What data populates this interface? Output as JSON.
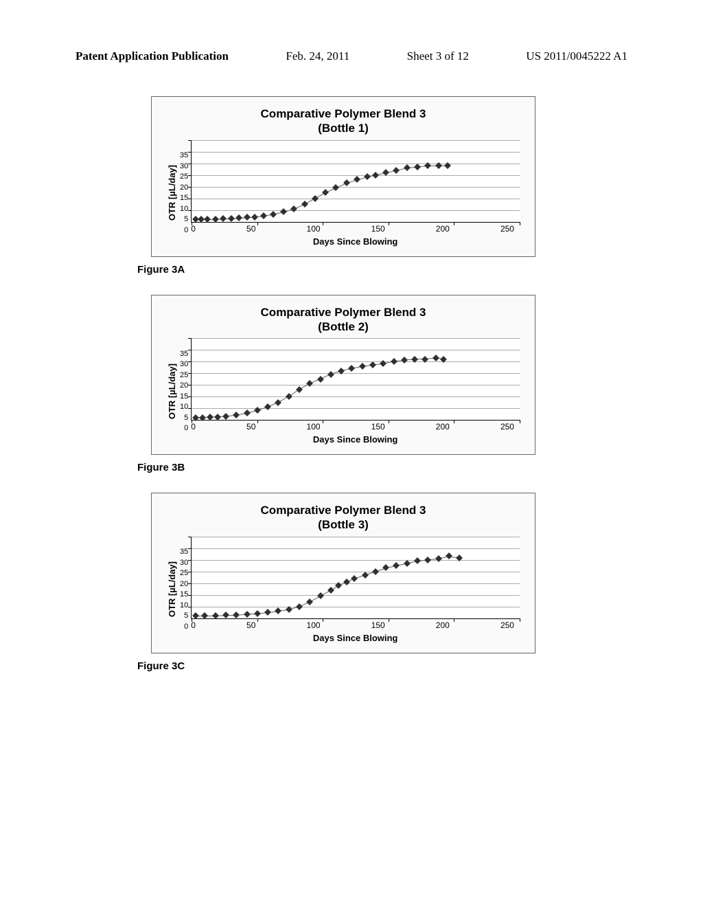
{
  "header": {
    "pub_label": "Patent Application Publication",
    "pub_date": "Feb. 24, 2011",
    "sheet": "Sheet 3 of 12",
    "pub_number": "US 2011/0045222 A1"
  },
  "charts": [
    {
      "title_line1": "Comparative Polymer Blend 3",
      "title_line2": "(Bottle 1)",
      "caption": "Figure 3A",
      "ylabel": "OTR [µL/day]",
      "xlabel": "Days Since Blowing",
      "xticks": [
        "0",
        "50",
        "100",
        "150",
        "200",
        "250"
      ],
      "yticks": [
        "35",
        "30",
        "25",
        "20",
        "15",
        "10",
        "5",
        "0"
      ],
      "xlim": [
        0,
        250
      ],
      "ylim": [
        0,
        35
      ],
      "ytick_step": 5,
      "type": "scatter_line",
      "line_color": "#606060",
      "marker_color": "#303030",
      "marker_size": 3.5,
      "grid_color": "#aaaaaa",
      "background_color": "#ffffff",
      "data": [
        {
          "x": 3,
          "y": 1
        },
        {
          "x": 7,
          "y": 1
        },
        {
          "x": 12,
          "y": 1
        },
        {
          "x": 18,
          "y": 1
        },
        {
          "x": 24,
          "y": 1.2
        },
        {
          "x": 30,
          "y": 1.3
        },
        {
          "x": 36,
          "y": 1.5
        },
        {
          "x": 42,
          "y": 1.8
        },
        {
          "x": 48,
          "y": 2
        },
        {
          "x": 55,
          "y": 2.5
        },
        {
          "x": 62,
          "y": 3.2
        },
        {
          "x": 70,
          "y": 4.2
        },
        {
          "x": 78,
          "y": 5.5
        },
        {
          "x": 86,
          "y": 7.5
        },
        {
          "x": 94,
          "y": 10
        },
        {
          "x": 102,
          "y": 12.5
        },
        {
          "x": 110,
          "y": 14.5
        },
        {
          "x": 118,
          "y": 16.5
        },
        {
          "x": 126,
          "y": 18
        },
        {
          "x": 134,
          "y": 19.2
        },
        {
          "x": 140,
          "y": 20
        },
        {
          "x": 148,
          "y": 21
        },
        {
          "x": 156,
          "y": 22
        },
        {
          "x": 164,
          "y": 23
        },
        {
          "x": 172,
          "y": 23.5
        },
        {
          "x": 180,
          "y": 24
        },
        {
          "x": 188,
          "y": 24
        },
        {
          "x": 195,
          "y": 24
        }
      ]
    },
    {
      "title_line1": "Comparative Polymer Blend 3",
      "title_line2": "(Bottle 2)",
      "caption": "Figure 3B",
      "ylabel": "OTR [µL/day]",
      "xlabel": "Days Since Blowing",
      "xticks": [
        "0",
        "50",
        "100",
        "150",
        "200",
        "250"
      ],
      "yticks": [
        "35",
        "30",
        "25",
        "20",
        "15",
        "10",
        "5",
        "0"
      ],
      "xlim": [
        0,
        250
      ],
      "ylim": [
        0,
        35
      ],
      "ytick_step": 5,
      "type": "scatter_line",
      "line_color": "#606060",
      "marker_color": "#303030",
      "marker_size": 3.5,
      "grid_color": "#aaaaaa",
      "background_color": "#ffffff",
      "data": [
        {
          "x": 3,
          "y": 1
        },
        {
          "x": 8,
          "y": 1
        },
        {
          "x": 14,
          "y": 1.2
        },
        {
          "x": 20,
          "y": 1.3
        },
        {
          "x": 26,
          "y": 1.5
        },
        {
          "x": 34,
          "y": 2
        },
        {
          "x": 42,
          "y": 2.8
        },
        {
          "x": 50,
          "y": 4
        },
        {
          "x": 58,
          "y": 5.5
        },
        {
          "x": 66,
          "y": 7.5
        },
        {
          "x": 74,
          "y": 10
        },
        {
          "x": 82,
          "y": 13
        },
        {
          "x": 90,
          "y": 15.5
        },
        {
          "x": 98,
          "y": 17.5
        },
        {
          "x": 106,
          "y": 19.5
        },
        {
          "x": 114,
          "y": 21
        },
        {
          "x": 122,
          "y": 22
        },
        {
          "x": 130,
          "y": 22.8
        },
        {
          "x": 138,
          "y": 23.5
        },
        {
          "x": 146,
          "y": 24
        },
        {
          "x": 154,
          "y": 25
        },
        {
          "x": 162,
          "y": 25.5
        },
        {
          "x": 170,
          "y": 26
        },
        {
          "x": 178,
          "y": 26
        },
        {
          "x": 186,
          "y": 26.5
        },
        {
          "x": 192,
          "y": 26
        }
      ]
    },
    {
      "title_line1": "Comparative Polymer Blend 3",
      "title_line2": "(Bottle 3)",
      "caption": "Figure 3C",
      "ylabel": "OTR [µL/day]",
      "xlabel": "Days Since Blowing",
      "xticks": [
        "0",
        "50",
        "100",
        "150",
        "200",
        "250"
      ],
      "yticks": [
        "35",
        "30",
        "25",
        "20",
        "15",
        "10",
        "5",
        "0"
      ],
      "xlim": [
        0,
        250
      ],
      "ylim": [
        0,
        35
      ],
      "ytick_step": 5,
      "type": "scatter_line",
      "line_color": "#606060",
      "marker_color": "#303030",
      "marker_size": 3.5,
      "grid_color": "#aaaaaa",
      "background_color": "#ffffff",
      "data": [
        {
          "x": 3,
          "y": 1
        },
        {
          "x": 10,
          "y": 1
        },
        {
          "x": 18,
          "y": 1.1
        },
        {
          "x": 26,
          "y": 1.2
        },
        {
          "x": 34,
          "y": 1.4
        },
        {
          "x": 42,
          "y": 1.7
        },
        {
          "x": 50,
          "y": 2
        },
        {
          "x": 58,
          "y": 2.5
        },
        {
          "x": 66,
          "y": 3
        },
        {
          "x": 74,
          "y": 3.8
        },
        {
          "x": 82,
          "y": 5
        },
        {
          "x": 90,
          "y": 7
        },
        {
          "x": 98,
          "y": 9.5
        },
        {
          "x": 106,
          "y": 12
        },
        {
          "x": 112,
          "y": 14
        },
        {
          "x": 118,
          "y": 15.5
        },
        {
          "x": 124,
          "y": 17
        },
        {
          "x": 132,
          "y": 18.5
        },
        {
          "x": 140,
          "y": 20
        },
        {
          "x": 148,
          "y": 21.5
        },
        {
          "x": 156,
          "y": 22.5
        },
        {
          "x": 164,
          "y": 23.5
        },
        {
          "x": 172,
          "y": 24.5
        },
        {
          "x": 180,
          "y": 25
        },
        {
          "x": 188,
          "y": 25.5
        },
        {
          "x": 196,
          "y": 26.5
        },
        {
          "x": 204,
          "y": 25.8
        }
      ]
    }
  ]
}
